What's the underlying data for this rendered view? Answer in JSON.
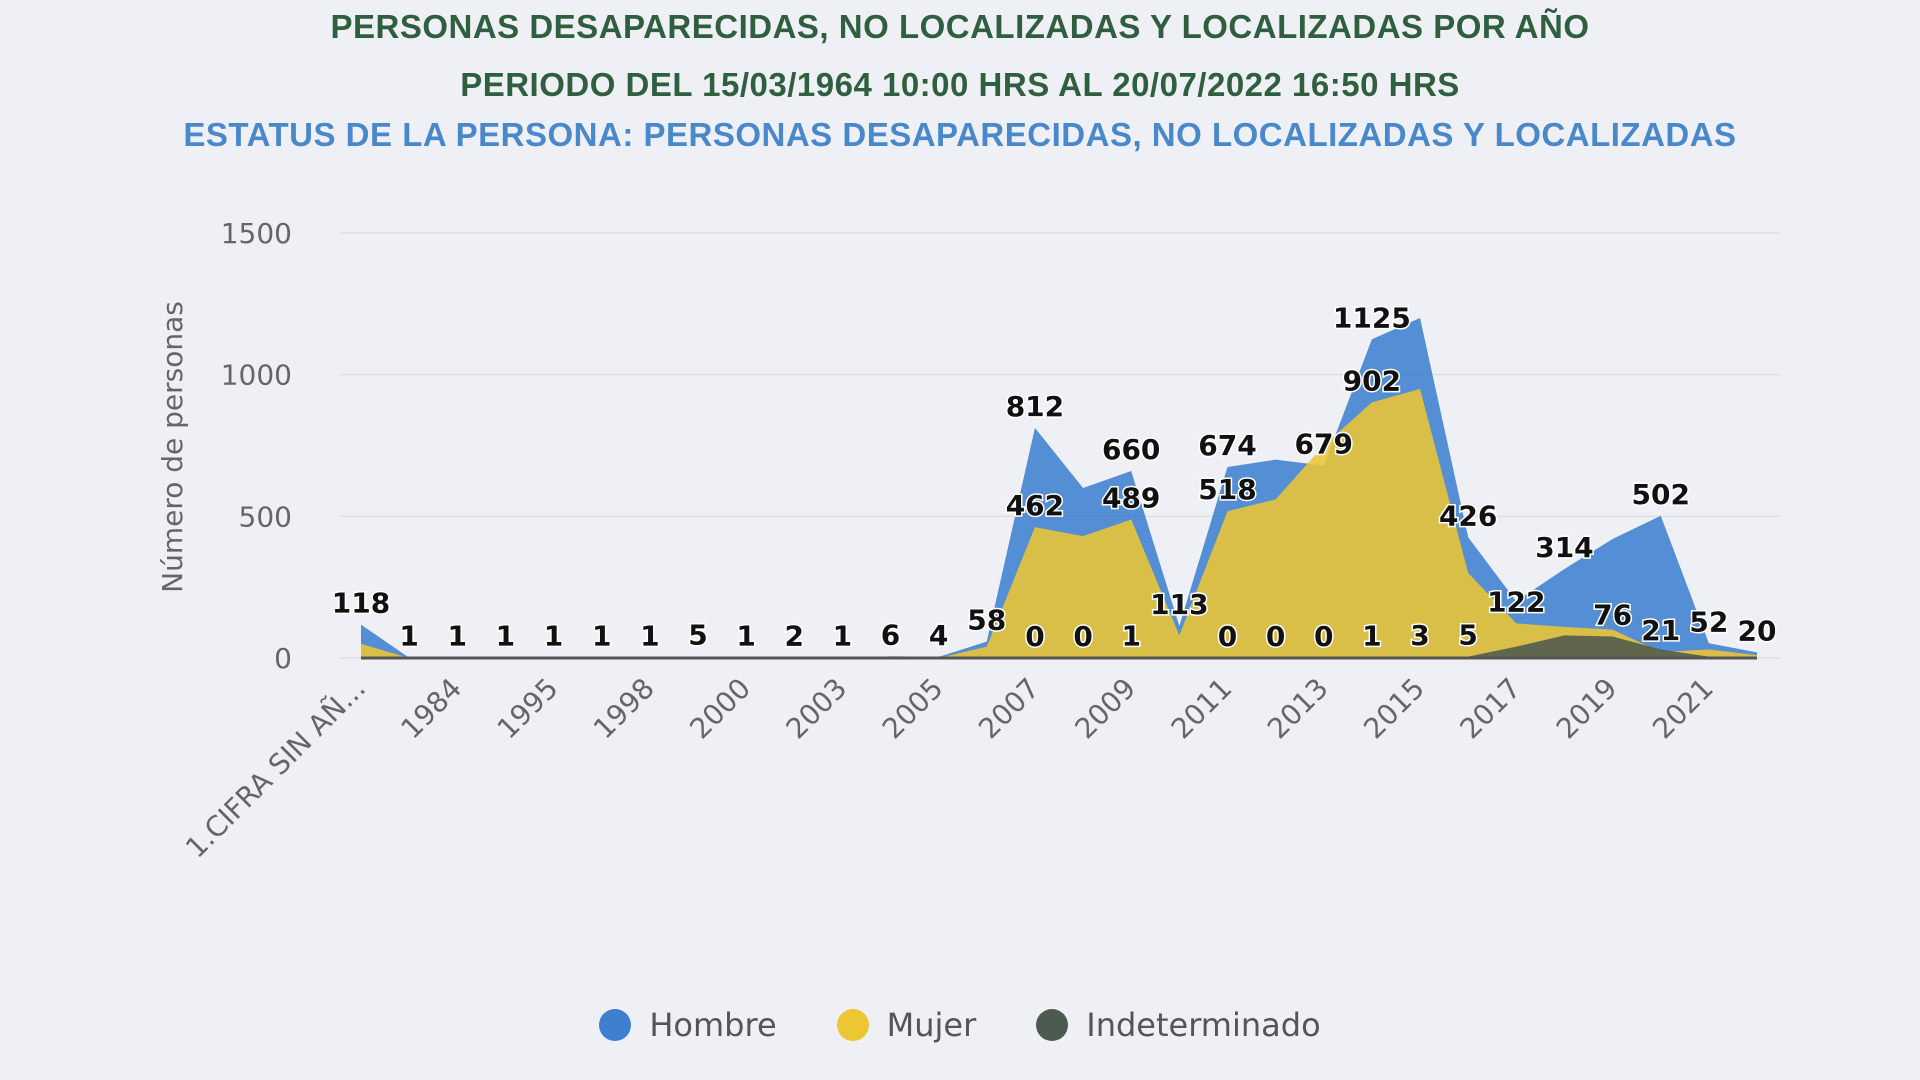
{
  "title": "PERSONAS DESAPARECIDAS, NO LOCALIZADAS Y LOCALIZADAS POR AÑO",
  "subtitle": "PERIODO DEL 15/03/1964 10:00 HRS AL 20/07/2022 16:50 HRS",
  "status_line": "ESTATUS DE LA PERSONA: PERSONAS DESAPARECIDAS, NO LOCALIZADAS Y LOCALIZADAS",
  "chart_data": {
    "type": "area",
    "ylabel": "Número de personas",
    "xlabel": "",
    "ylim": [
      0,
      1500
    ],
    "yticks": [
      0,
      500,
      1000,
      1500
    ],
    "grid": true,
    "legend_position": "bottom",
    "categories": [
      "1.CIFRA SIN AÑ...",
      "",
      "1984",
      "",
      "1995",
      "",
      "1998",
      "",
      "2000",
      "",
      "2003",
      "",
      "2005",
      "",
      "2007",
      "",
      "2009",
      "",
      "2011",
      "",
      "2013",
      "",
      "2015",
      "",
      "2017",
      "",
      "2019",
      "",
      "2021",
      ""
    ],
    "series": [
      {
        "name": "Hombre",
        "color": "#3f7fcf",
        "values": [
          118,
          1,
          1,
          1,
          1,
          1,
          1,
          5,
          1,
          2,
          1,
          6,
          4,
          58,
          812,
          600,
          660,
          113,
          674,
          700,
          679,
          1125,
          1200,
          426,
          200,
          314,
          420,
          502,
          52,
          20
        ],
        "labeled": [
          0,
          1,
          2,
          3,
          4,
          5,
          6,
          7,
          8,
          9,
          10,
          11,
          12,
          13,
          14,
          16,
          17,
          18,
          20,
          21,
          23,
          25,
          27,
          28,
          29
        ]
      },
      {
        "name": "Mujer",
        "color": "#ecc633",
        "values": [
          50,
          0,
          0,
          0,
          0,
          0,
          0,
          0,
          0,
          0,
          0,
          0,
          0,
          40,
          462,
          430,
          489,
          80,
          518,
          560,
          750,
          902,
          950,
          300,
          122,
          110,
          100,
          21,
          30,
          10
        ],
        "labeled": [
          14,
          16,
          18,
          21,
          24,
          27
        ]
      },
      {
        "name": "Indeterminado",
        "color": "#4d5a4f",
        "values": [
          0,
          0,
          0,
          0,
          0,
          0,
          0,
          0,
          0,
          0,
          0,
          0,
          0,
          0,
          0,
          0,
          1,
          0,
          0,
          0,
          0,
          1,
          3,
          5,
          40,
          80,
          76,
          30,
          5,
          2
        ],
        "labeled": [
          14,
          15,
          16,
          18,
          19,
          20,
          21,
          22,
          23,
          26
        ]
      }
    ]
  },
  "legend": {
    "items": [
      "Hombre",
      "Mujer",
      "Indeterminado"
    ]
  }
}
